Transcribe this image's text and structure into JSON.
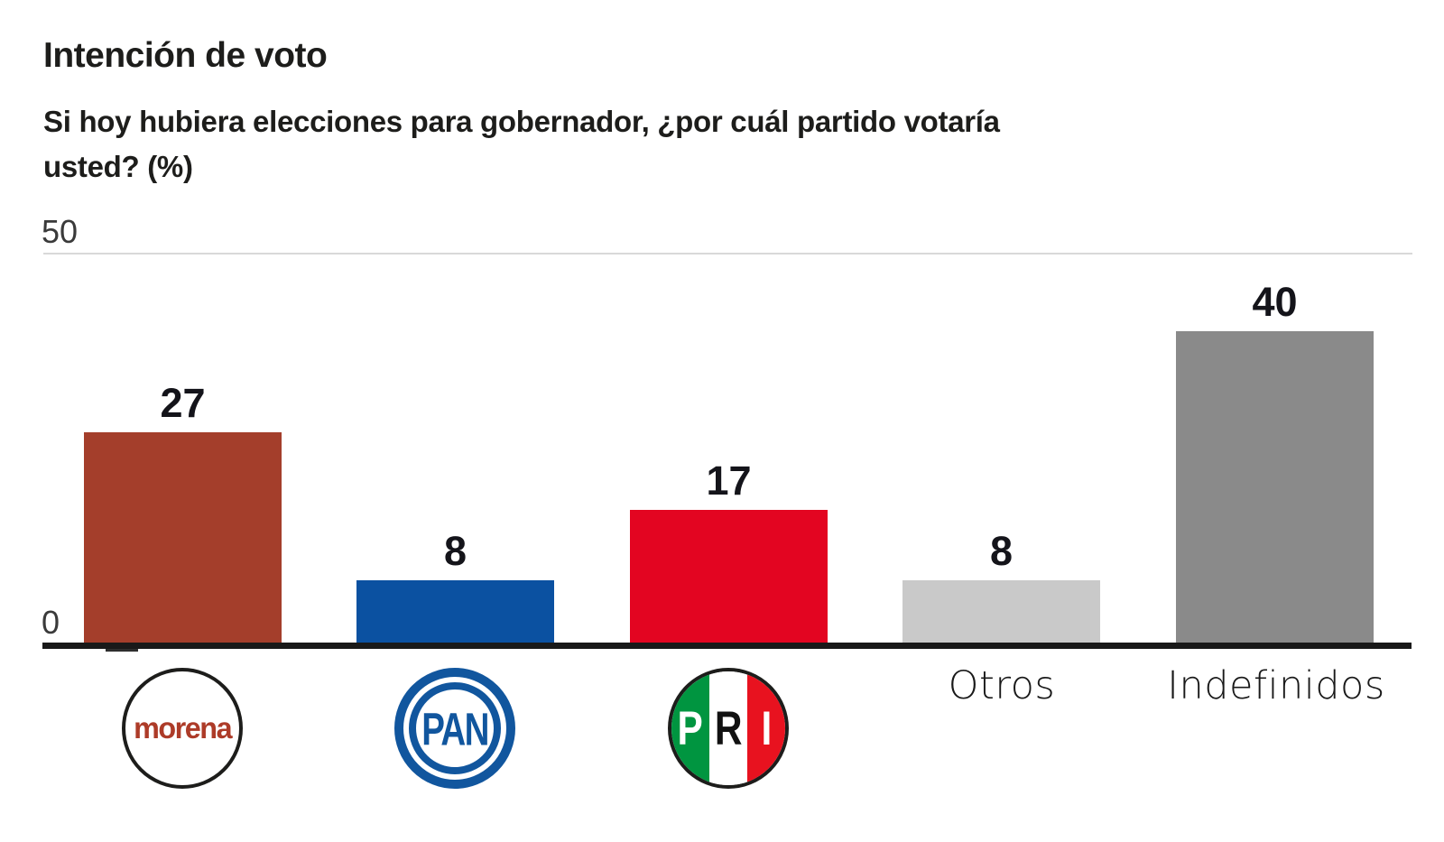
{
  "chart_data": {
    "type": "bar",
    "title": "Intención de voto",
    "subtitle": "Si hoy hubiera elecciones para gobernador, ¿por cuál partido votaría usted? (%)",
    "categories": [
      "Morena",
      "PAN",
      "PRI",
      "Otros",
      "Indefinidos"
    ],
    "values": [
      27,
      8,
      17,
      8,
      40
    ],
    "bar_colors": [
      "#a43e2b",
      "#0b51a1",
      "#e30521",
      "#c9c9c9",
      "#8a8a8a"
    ],
    "xlabel": "",
    "ylabel": "",
    "ylim": [
      0,
      50
    ],
    "yticks": [
      0,
      50
    ],
    "grid": "single top gridline at 50",
    "legend_position": "none",
    "unit": "%"
  },
  "header": {
    "subtitle_lines": [
      "Si hoy hubiera elecciones para gobernador, ¿por cuál partido votaría",
      "usted? (%)"
    ]
  },
  "axis": {
    "top_tick": "50",
    "zero_tick": "0"
  },
  "x_labels": {
    "otros": "Otros",
    "indefinidos": "Indefinidos"
  },
  "logos": {
    "morena": {
      "text": "morena",
      "text_color": "#ad3b28",
      "ring_color": "#1d1d1b"
    },
    "pan": {
      "text": "PAN",
      "blue": "#11569e"
    },
    "pri": {
      "p": "P",
      "r": "R",
      "i": "I",
      "green": "#009540",
      "white": "#ffffff",
      "red": "#e8121f",
      "ring_color": "#1d1d1b"
    }
  },
  "colors": {
    "background": "#ffffff",
    "text": "#1d1d1b",
    "gridline": "#d9d9d9",
    "baseline": "#191919"
  }
}
